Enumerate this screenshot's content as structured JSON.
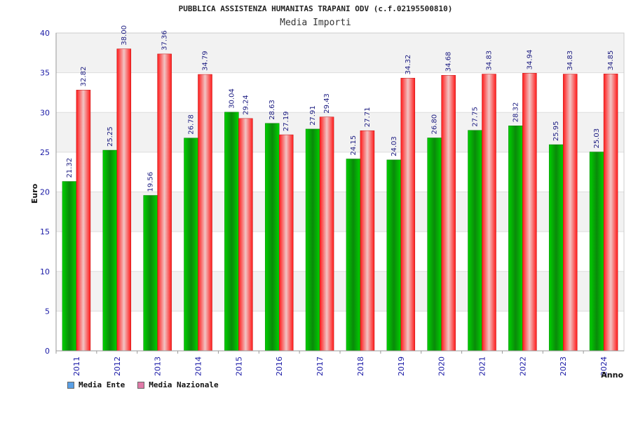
{
  "chart_data": {
    "type": "bar",
    "title": "PUBBLICA ASSISTENZA HUMANITAS TRAPANI ODV (c.f.02195500810)",
    "subtitle": "Media Importi",
    "xlabel": "Anno",
    "ylabel": "Euro",
    "ylim": [
      0,
      40
    ],
    "yticks": [
      "0",
      "5",
      "10",
      "15",
      "20",
      "25",
      "30",
      "35",
      "40"
    ],
    "categories": [
      "2011",
      "2012",
      "2013",
      "2014",
      "2015",
      "2016",
      "2017",
      "2018",
      "2019",
      "2020",
      "2021",
      "2022",
      "2023",
      "2024"
    ],
    "series": [
      {
        "name": "Media Ente",
        "color": "#00b000",
        "values": [
          21.32,
          25.25,
          19.56,
          26.78,
          30.04,
          28.63,
          27.91,
          24.15,
          24.03,
          26.8,
          27.75,
          28.32,
          25.95,
          25.03
        ],
        "labels": [
          "21.32",
          "25.25",
          "19.56",
          "26.78",
          "30.04",
          "28.63",
          "27.91",
          "24.15",
          "24.03",
          "26.80",
          "27.75",
          "28.32",
          "25.95",
          "25.03"
        ]
      },
      {
        "name": "Media Nazionale",
        "color": "#e8202a",
        "values": [
          32.82,
          38.0,
          37.36,
          34.79,
          29.24,
          27.19,
          29.43,
          27.71,
          34.32,
          34.68,
          34.83,
          34.94,
          34.83,
          34.85
        ],
        "labels": [
          "32.82",
          "38.00",
          "37.36",
          "34.79",
          "29.24",
          "27.19",
          "29.43",
          "27.71",
          "34.32",
          "34.68",
          "34.83",
          "34.94",
          "34.83",
          "34.85"
        ]
      }
    ],
    "grid": true,
    "legend_position": "bottom-left",
    "legend_swatch_colors": [
      "#5aa0e6",
      "#e07aa8"
    ]
  }
}
